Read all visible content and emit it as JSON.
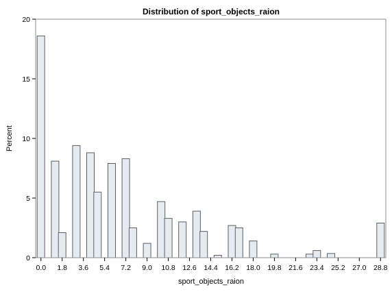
{
  "chart_data": {
    "type": "bar",
    "title": "Distribution of sport_objects_raion",
    "xlabel": "sport_objects_raion",
    "ylabel": "Percent",
    "ylim": [
      0,
      20
    ],
    "yticks": [
      0,
      5,
      10,
      15,
      20
    ],
    "xlim": [
      -0.45,
      29.25
    ],
    "xticks": [
      "0.0",
      "1.8",
      "3.6",
      "5.4",
      "7.2",
      "9.0",
      "10.8",
      "12.6",
      "14.4",
      "16.2",
      "18.0",
      "19.8",
      "21.6",
      "23.4",
      "25.2",
      "27.0",
      "28.8"
    ],
    "bin_width": 0.6,
    "grid": false,
    "legend": "none",
    "x": [
      0,
      1.2,
      1.8,
      3.0,
      4.2,
      4.8,
      6.0,
      7.2,
      7.8,
      9.0,
      10.2,
      10.8,
      12.0,
      13.2,
      13.8,
      15.0,
      16.2,
      16.8,
      18.0,
      19.8,
      22.8,
      23.4,
      24.6,
      28.8
    ],
    "values": [
      18.6,
      8.1,
      2.1,
      9.4,
      8.8,
      5.5,
      7.9,
      8.3,
      2.5,
      1.2,
      4.7,
      3.3,
      3.0,
      3.9,
      2.2,
      0.2,
      2.7,
      2.5,
      1.4,
      0.3,
      0.3,
      0.6,
      0.35,
      2.9
    ]
  }
}
